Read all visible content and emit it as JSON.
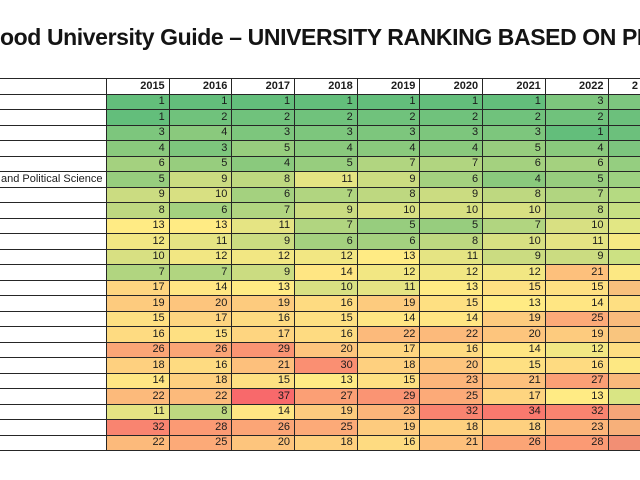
{
  "title": {
    "text": "ood University Guide – UNIVERSITY RANKING BASED ON PERFO"
  },
  "chart_data": {
    "type": "heatmap",
    "title": "ood University Guide – UNIVERSITY RANKING BASED ON PERFO",
    "columns": [
      "2015",
      "2016",
      "2017",
      "2018",
      "2019",
      "2020",
      "2021",
      "2022"
    ],
    "clipped_column": {
      "visible_label": "2"
    },
    "rows": [
      {
        "label": "",
        "values": [
          1,
          1,
          1,
          1,
          1,
          1,
          1,
          3
        ]
      },
      {
        "label": "",
        "values": [
          1,
          2,
          2,
          2,
          2,
          2,
          2,
          2
        ]
      },
      {
        "label": "",
        "values": [
          3,
          4,
          3,
          3,
          3,
          3,
          3,
          1
        ]
      },
      {
        "label": "",
        "values": [
          4,
          3,
          5,
          4,
          4,
          4,
          5,
          4
        ]
      },
      {
        "label": "",
        "values": [
          6,
          5,
          4,
          5,
          7,
          7,
          6,
          6
        ]
      },
      {
        "label": "and Political Science",
        "values": [
          5,
          9,
          8,
          11,
          9,
          6,
          4,
          5
        ]
      },
      {
        "label": "",
        "values": [
          9,
          10,
          6,
          7,
          8,
          9,
          8,
          7
        ]
      },
      {
        "label": "",
        "values": [
          8,
          6,
          7,
          9,
          10,
          10,
          10,
          8
        ]
      },
      {
        "label": "",
        "values": [
          13,
          13,
          11,
          7,
          5,
          5,
          7,
          10
        ]
      },
      {
        "label": "",
        "values": [
          12,
          11,
          9,
          6,
          6,
          8,
          10,
          11
        ]
      },
      {
        "label": "",
        "values": [
          10,
          12,
          12,
          12,
          13,
          11,
          9,
          9
        ]
      },
      {
        "label": "",
        "values": [
          7,
          7,
          9,
          14,
          12,
          12,
          12,
          21
        ]
      },
      {
        "label": "",
        "values": [
          17,
          14,
          13,
          10,
          11,
          13,
          15,
          15
        ]
      },
      {
        "label": "",
        "values": [
          19,
          20,
          19,
          16,
          19,
          15,
          13,
          14
        ]
      },
      {
        "label": "",
        "values": [
          15,
          17,
          16,
          15,
          14,
          14,
          19,
          25
        ]
      },
      {
        "label": "",
        "values": [
          16,
          15,
          17,
          16,
          22,
          22,
          20,
          19
        ]
      },
      {
        "label": "",
        "values": [
          26,
          26,
          29,
          20,
          17,
          16,
          14,
          12
        ]
      },
      {
        "label": "",
        "values": [
          18,
          16,
          21,
          30,
          18,
          20,
          15,
          16
        ]
      },
      {
        "label": "",
        "values": [
          14,
          18,
          15,
          13,
          15,
          23,
          21,
          27
        ]
      },
      {
        "label": "",
        "values": [
          22,
          22,
          37,
          27,
          29,
          25,
          17,
          13
        ]
      },
      {
        "label": "",
        "values": [
          11,
          8,
          14,
          19,
          23,
          32,
          34,
          32
        ]
      },
      {
        "label": "",
        "values": [
          32,
          28,
          26,
          25,
          19,
          18,
          18,
          23
        ]
      },
      {
        "label": "",
        "values": [
          22,
          25,
          20,
          18,
          16,
          21,
          26,
          28
        ]
      }
    ],
    "clipped_column_colors": [
      "#7dc67f",
      "#6cc07c",
      "#6cc07c",
      "#7cc57e",
      "#95ce80",
      "#9dd181",
      "#b5da82",
      "#c6df83",
      "#e2e784",
      "#f7e984",
      "#cce183",
      "#fce883",
      "#f8c07d",
      "#fedf82",
      "#f9bb7c",
      "#f9c57e",
      "#fedd82",
      "#fde883",
      "#f9b87b",
      "#d9e584",
      "#f5a578",
      "#f7b07a",
      "#f28f74"
    ],
    "color_scale": {
      "min": {
        "value": 1,
        "color": "#63BE7B"
      },
      "mid": {
        "value": 13,
        "color": "#FFEB84"
      },
      "max": {
        "value": 37,
        "color": "#F8696B"
      }
    }
  }
}
